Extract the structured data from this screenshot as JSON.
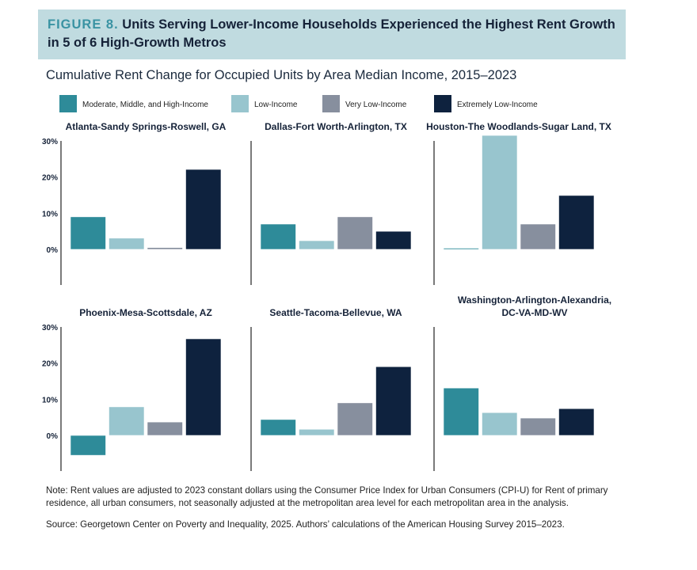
{
  "header": {
    "figure_label": "FIGURE 8.",
    "title": "Units Serving Lower-Income Households Experienced the Highest Rent Growth in 5 of 6 High-Growth Metros"
  },
  "chart_data": {
    "type": "bar",
    "title": "Cumulative Rent Change for Occupied Units by Area Median Income, 2015–2023",
    "legend_placement": "top",
    "categories": [
      "Moderate, Middle, and High-Income",
      "Low-Income",
      "Very Low-Income",
      "Extremely Low-Income"
    ],
    "colors": [
      "#2e8b99",
      "#98c5ce",
      "#878f9e",
      "#0e223e"
    ],
    "ylim": [
      -10,
      30
    ],
    "yticks": [
      "30%",
      "20%",
      "10%",
      "0%"
    ],
    "panels": [
      {
        "title": "Atlanta-Sandy Springs-Roswell, GA",
        "values": [
          9.0,
          3.1,
          0.5,
          22.1
        ]
      },
      {
        "title": "Dallas-Fort Worth-Arlington, TX",
        "values": [
          7.0,
          2.4,
          9.0,
          5.0
        ]
      },
      {
        "title": "Houston-The Woodlands-Sugar Land, TX",
        "values": [
          0.3,
          31.5,
          7.0,
          14.9
        ]
      },
      {
        "title": "Phoenix-Mesa-Scottsdale, AZ",
        "values": [
          -5.5,
          7.9,
          3.7,
          26.7
        ]
      },
      {
        "title": "Seattle-Tacoma-Bellevue, WA",
        "values": [
          4.4,
          1.7,
          9.0,
          19.0
        ]
      },
      {
        "title": "Washington-Arlington-Alexandria, DC-VA-MD-WV",
        "title_lines": [
          "Washington-Arlington-Alexandria,",
          "DC-VA-MD-WV"
        ],
        "values": [
          13.1,
          6.3,
          4.8,
          7.4
        ]
      }
    ]
  },
  "notes": {
    "note": "Note: Rent values are adjusted to 2023 constant dollars using the Consumer Price Index for Urban Consumers (CPI-U) for Rent of primary residence, all urban consumers, not seasonally adjusted at the metropolitan area level for each metropolitan area in the analysis.",
    "source": "Source: Georgetown Center on Poverty and Inequality, 2025. Authors’ calculations of the American Housing Survey 2015–2023."
  }
}
